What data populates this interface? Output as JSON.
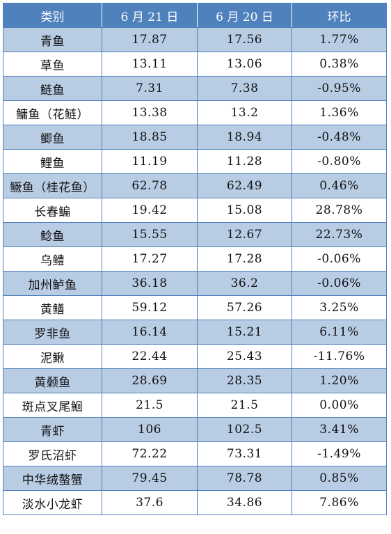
{
  "headers": [
    "类别",
    "6 月 21 日",
    "6 月 20 日",
    "环比"
  ],
  "rows": [
    [
      "青鱼",
      "17.87",
      "17.56",
      "1.77%"
    ],
    [
      "草鱼",
      "13.11",
      "13.06",
      "0.38%"
    ],
    [
      "鲢鱼",
      "7.31",
      "7.38",
      "-0.95%"
    ],
    [
      "鳙鱼（花鲢）",
      "13.38",
      "13.2",
      "1.36%"
    ],
    [
      "鲫鱼",
      "18.85",
      "18.94",
      "-0.48%"
    ],
    [
      "鲤鱼",
      "11.19",
      "11.28",
      "-0.80%"
    ],
    [
      "鳜鱼（桂花鱼）",
      "62.78",
      "62.49",
      "0.46%"
    ],
    [
      "长春鳊",
      "19.42",
      "15.08",
      "28.78%"
    ],
    [
      "鲶鱼",
      "15.55",
      "12.67",
      "22.73%"
    ],
    [
      "乌鳢",
      "17.27",
      "17.28",
      "-0.06%"
    ],
    [
      "加州鲈鱼",
      "36.18",
      "36.2",
      "-0.06%"
    ],
    [
      "黄鳝",
      "59.12",
      "57.26",
      "3.25%"
    ],
    [
      "罗非鱼",
      "16.14",
      "15.21",
      "6.11%"
    ],
    [
      "泥鳅",
      "22.44",
      "25.43",
      "-11.76%"
    ],
    [
      "黄颡鱼",
      "28.69",
      "28.35",
      "1.20%"
    ],
    [
      "斑点叉尾鮰",
      "21.5",
      "21.5",
      "0.00%"
    ],
    [
      "青虾",
      "106",
      "102.5",
      "3.41%"
    ],
    [
      "罗氏沼虾",
      "72.22",
      "73.31",
      "-1.49%"
    ],
    [
      "中华绒螯蟹",
      "79.45",
      "78.78",
      "0.85%"
    ],
    [
      "淡水小龙虾",
      "37.6",
      "34.86",
      "7.86%"
    ]
  ],
  "colors": {
    "header_bg": "#4f81bd",
    "header_text": "#ffffff",
    "band_row": "#b8cce4",
    "plain_row": "#ffffff",
    "border": "#4f81bd"
  }
}
